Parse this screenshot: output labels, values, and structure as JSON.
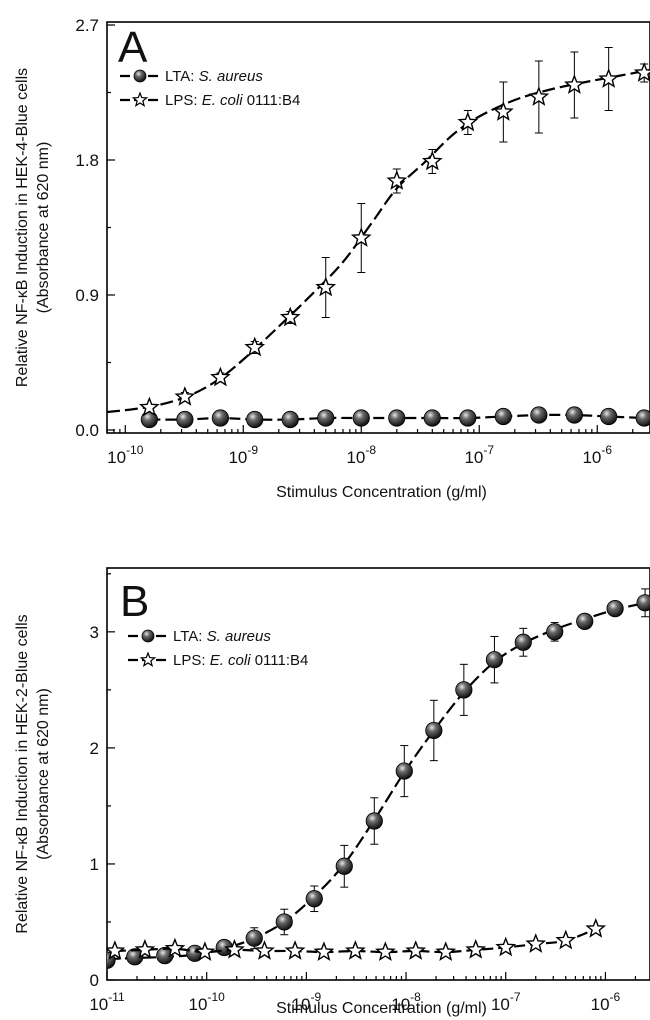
{
  "chart_data": [
    {
      "panel": "A",
      "type": "scatter",
      "xscale": "log",
      "xlabel": "Stimulus Concentration (g/ml)",
      "ylabel_line1": "Relative NF-κB Induction in HEK-4-Blue cells",
      "ylabel_line2": "(Absorbance at 620 nm)",
      "xlim": [
        7e-11,
        2.8e-06
      ],
      "ylim": [
        -0.02,
        2.72
      ],
      "xticks": [
        1e-10,
        1e-09,
        1e-08,
        1e-07,
        1e-06
      ],
      "xtick_labels": [
        {
          "base": "10",
          "exp": "-10"
        },
        {
          "base": "10",
          "exp": "-9"
        },
        {
          "base": "10",
          "exp": "-8"
        },
        {
          "base": "10",
          "exp": "-7"
        },
        {
          "base": "10",
          "exp": "-6"
        }
      ],
      "yticks": [
        0.0,
        0.9,
        1.8,
        2.7
      ],
      "ytick_labels": [
        "0.0",
        "0.9",
        "1.8",
        "2.7"
      ],
      "legend": [
        {
          "marker": "ball",
          "prefix": "LTA: ",
          "italic": "S. aureus",
          "suffix": ""
        },
        {
          "marker": "star",
          "prefix": "LPS: ",
          "italic": "E. coli",
          "suffix": " 0111:B4"
        }
      ],
      "series": [
        {
          "marker": "ball",
          "x": [
            1.6e-10,
            3.2e-10,
            6.4e-10,
            1.25e-09,
            2.5e-09,
            5e-09,
            1e-08,
            2e-08,
            4e-08,
            8e-08,
            1.6e-07,
            3.2e-07,
            6.4e-07,
            1.25e-06,
            2.5e-06
          ],
          "y": [
            0.07,
            0.07,
            0.08,
            0.07,
            0.07,
            0.08,
            0.08,
            0.08,
            0.08,
            0.08,
            0.09,
            0.1,
            0.1,
            0.09,
            0.08
          ],
          "err": [
            0,
            0,
            0,
            0,
            0,
            0,
            0,
            0,
            0,
            0,
            0,
            0,
            0,
            0,
            0
          ]
        },
        {
          "marker": "star",
          "x": [
            1.6e-10,
            3.2e-10,
            6.4e-10,
            1.25e-09,
            2.5e-09,
            5e-09,
            1e-08,
            2e-08,
            4e-08,
            8e-08,
            1.6e-07,
            3.2e-07,
            6.4e-07,
            1.25e-06,
            2.5e-06
          ],
          "y": [
            0.15,
            0.22,
            0.35,
            0.55,
            0.75,
            0.95,
            1.28,
            1.66,
            1.79,
            2.05,
            2.12,
            2.22,
            2.3,
            2.34,
            2.38
          ],
          "err": [
            0.02,
            0.03,
            0.03,
            0.04,
            0.04,
            0.2,
            0.23,
            0.08,
            0.08,
            0.08,
            0.2,
            0.24,
            0.22,
            0.21,
            0.06
          ],
          "fit_x": [
            7e-11,
            1.2e-10,
            2e-10,
            3.5e-10,
            6e-10,
            1e-09,
            2e-09,
            4e-09,
            7e-09,
            1.2e-08,
            2e-08,
            3.5e-08,
            6e-08,
            1e-07,
            2e-07,
            4e-07,
            8e-07,
            1.5e-06,
            2.8e-06
          ],
          "fit_y": [
            0.12,
            0.14,
            0.17,
            0.23,
            0.33,
            0.47,
            0.69,
            0.92,
            1.12,
            1.37,
            1.61,
            1.79,
            1.97,
            2.09,
            2.2,
            2.27,
            2.32,
            2.36,
            2.4
          ]
        }
      ]
    },
    {
      "panel": "B",
      "type": "scatter",
      "xscale": "log",
      "xlabel": "Stimulus Concentration (g/ml)",
      "ylabel_line1": "Relative NF-κB Induction in HEK-2-Blue cells",
      "ylabel_line2": "(Absorbance at 620 nm)",
      "xlim": [
        1e-11,
        2.8e-06
      ],
      "ylim": [
        0,
        3.55
      ],
      "xticks": [
        1e-11,
        1e-10,
        1e-09,
        1e-08,
        1e-07,
        1e-06
      ],
      "xtick_labels": [
        {
          "base": "10",
          "exp": "-11"
        },
        {
          "base": "10",
          "exp": "-10"
        },
        {
          "base": "10",
          "exp": "-9"
        },
        {
          "base": "10",
          "exp": "-8"
        },
        {
          "base": "10",
          "exp": "-7"
        },
        {
          "base": "10",
          "exp": "-6"
        }
      ],
      "yticks": [
        0,
        1,
        2,
        3
      ],
      "ytick_labels": [
        "0",
        "1",
        "2",
        "3"
      ],
      "legend": [
        {
          "marker": "ball",
          "prefix": "LTA: ",
          "italic": "S. aureus",
          "suffix": ""
        },
        {
          "marker": "star",
          "prefix": "LPS: ",
          "italic": "E. coli",
          "suffix": " 0111:B4"
        }
      ],
      "series": [
        {
          "marker": "ball",
          "x": [
            1e-11,
            1.9e-11,
            3.8e-11,
            7.6e-11,
            1.5e-10,
            3e-10,
            6e-10,
            1.2e-09,
            2.4e-09,
            4.8e-09,
            9.6e-09,
            1.9e-08,
            3.8e-08,
            7.7e-08,
            1.5e-07,
            3.1e-07,
            6.2e-07,
            1.25e-06,
            2.5e-06
          ],
          "y": [
            0.17,
            0.2,
            0.21,
            0.23,
            0.28,
            0.36,
            0.5,
            0.7,
            0.98,
            1.37,
            1.8,
            2.15,
            2.5,
            2.76,
            2.91,
            3.0,
            3.09,
            3.2,
            3.25
          ],
          "err": [
            0.03,
            0.03,
            0.03,
            0.05,
            0.05,
            0.09,
            0.11,
            0.11,
            0.18,
            0.2,
            0.22,
            0.26,
            0.22,
            0.2,
            0.12,
            0.08,
            0.06,
            0.06,
            0.12
          ],
          "fit_x": [
            1e-11,
            2e-11,
            4e-11,
            8e-11,
            1.5e-10,
            3e-10,
            6e-10,
            1.2e-09,
            2.4e-09,
            4.8e-09,
            9.6e-09,
            1.9e-08,
            3.8e-08,
            7.7e-08,
            1.5e-07,
            3.1e-07,
            6.2e-07,
            1.25e-06,
            2.5e-06
          ],
          "fit_y": [
            0.18,
            0.19,
            0.2,
            0.22,
            0.27,
            0.36,
            0.5,
            0.72,
            1.0,
            1.38,
            1.79,
            2.15,
            2.48,
            2.74,
            2.9,
            3.02,
            3.11,
            3.19,
            3.25
          ]
        },
        {
          "marker": "star",
          "x": [
            1.2e-11,
            2.4e-11,
            4.8e-11,
            9.6e-11,
            1.9e-10,
            3.8e-10,
            7.7e-10,
            1.5e-09,
            3.1e-09,
            6.2e-09,
            1.25e-08,
            2.5e-08,
            5e-08,
            1e-07,
            2e-07,
            4e-07,
            8e-07
          ],
          "y": [
            0.25,
            0.26,
            0.27,
            0.24,
            0.26,
            0.25,
            0.25,
            0.24,
            0.25,
            0.24,
            0.25,
            0.24,
            0.26,
            0.28,
            0.31,
            0.34,
            0.44
          ],
          "err": [
            0,
            0,
            0,
            0,
            0,
            0,
            0,
            0,
            0,
            0,
            0,
            0,
            0,
            0,
            0,
            0,
            0
          ]
        }
      ]
    }
  ]
}
